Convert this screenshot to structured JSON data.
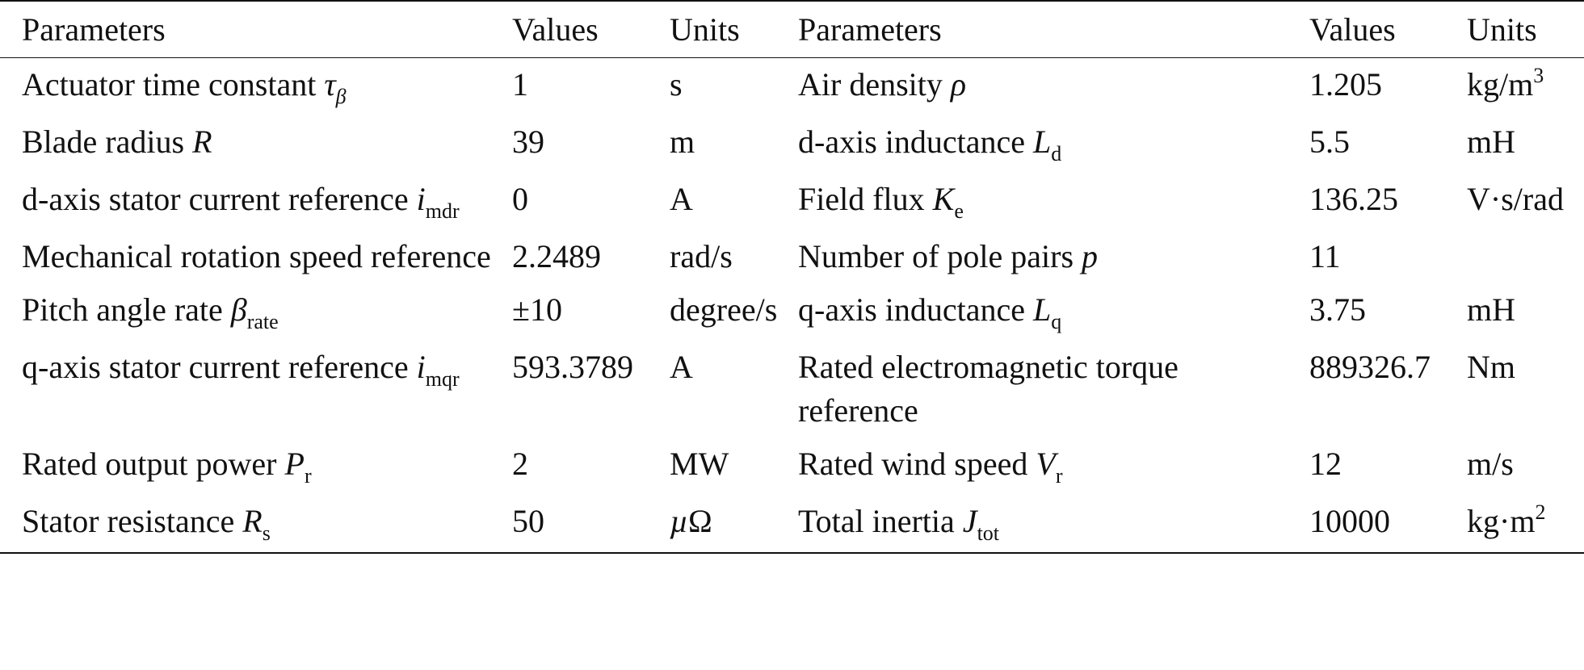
{
  "table": {
    "header": [
      "Parameters",
      "Values",
      "Units",
      "Parameters",
      "Values",
      "Units"
    ],
    "rows": [
      [
        [
          "Actuator time constant",
          {
            "italic": "τ"
          },
          {
            "sub_italic": "β"
          }
        ],
        "1",
        "s",
        [
          "Air density",
          {
            "italic": "ρ"
          }
        ],
        "1.205",
        [
          "kg/m",
          {
            "sup": "3"
          }
        ]
      ],
      [
        [
          "Blade radius",
          {
            "italic": "R"
          }
        ],
        "39",
        "m",
        [
          "d-axis inductance",
          {
            "italic": "L"
          },
          {
            "sub": "d"
          }
        ],
        "5.5",
        "mH"
      ],
      [
        [
          "d-axis stator current reference",
          {
            "italic": "i"
          },
          {
            "sub": "mdr"
          }
        ],
        "0",
        "A",
        [
          "Field flux",
          {
            "italic": "K"
          },
          {
            "sub": "e"
          }
        ],
        "136.25",
        "V·s/rad"
      ],
      [
        "Mechanical rotation speed reference",
        "2.2489",
        "rad/s",
        [
          "Number of pole pairs",
          {
            "italic": "p"
          }
        ],
        "11",
        null
      ],
      [
        [
          "Pitch angle rate",
          {
            "italic": "β"
          },
          {
            "sub": "rate"
          }
        ],
        "±10",
        "degree/s",
        [
          "q-axis inductance",
          {
            "italic": "L"
          },
          {
            "sub": "q"
          }
        ],
        "3.75",
        "mH"
      ],
      [
        [
          "q-axis stator current reference",
          {
            "italic": "i"
          },
          {
            "sub": "mqr"
          }
        ],
        "593.3789",
        "A",
        "Rated electromagnetic torque reference",
        "889326.7",
        "Nm"
      ],
      [
        [
          "Rated output power",
          {
            "italic": "P"
          },
          {
            "sub": "r"
          }
        ],
        "2",
        "MW",
        [
          "Rated wind speed",
          {
            "italic": "V"
          },
          {
            "sub": "r"
          }
        ],
        "12",
        "m/s"
      ],
      [
        [
          "Stator resistance",
          {
            "italic": "R"
          },
          {
            "sub": "s"
          }
        ],
        "50",
        [
          {
            "italic": "µ"
          },
          "Ω"
        ],
        [
          "Total inertia",
          {
            "italic": "J"
          },
          {
            "sub": "tot"
          }
        ],
        "10000",
        [
          "kg·m",
          {
            "sup": "2"
          }
        ]
      ]
    ]
  }
}
